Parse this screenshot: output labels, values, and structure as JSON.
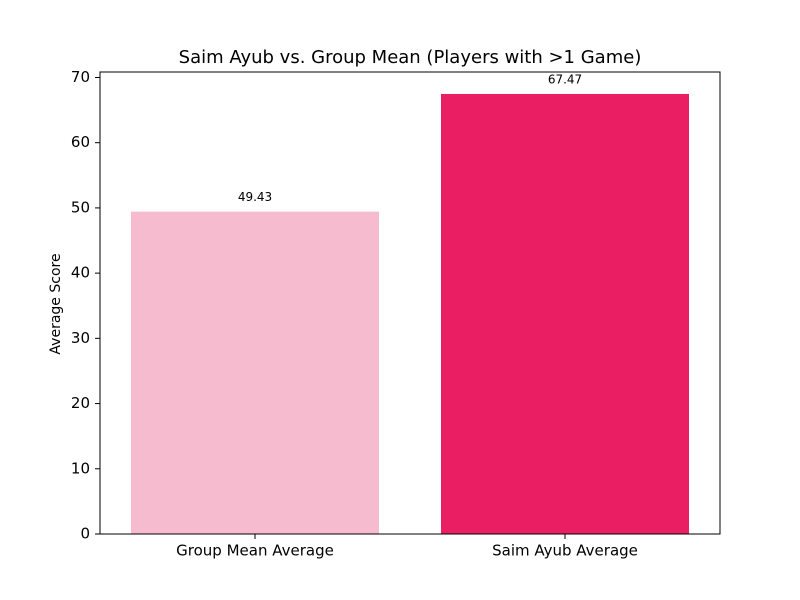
{
  "chart_data": {
    "type": "bar",
    "title": "Saim Ayub vs. Group Mean (Players with >1 Game)",
    "y_label": "Average Score",
    "categories": [
      "Group Mean Average",
      "Saim Ayub Average"
    ],
    "values": [
      49.43,
      67.47
    ],
    "colors": [
      "#f7bbd0",
      "#e91e63"
    ],
    "ylim": [
      0,
      70.84
    ],
    "yticks": [
      0,
      10,
      20,
      30,
      40,
      50,
      60,
      70
    ],
    "grid": false
  }
}
